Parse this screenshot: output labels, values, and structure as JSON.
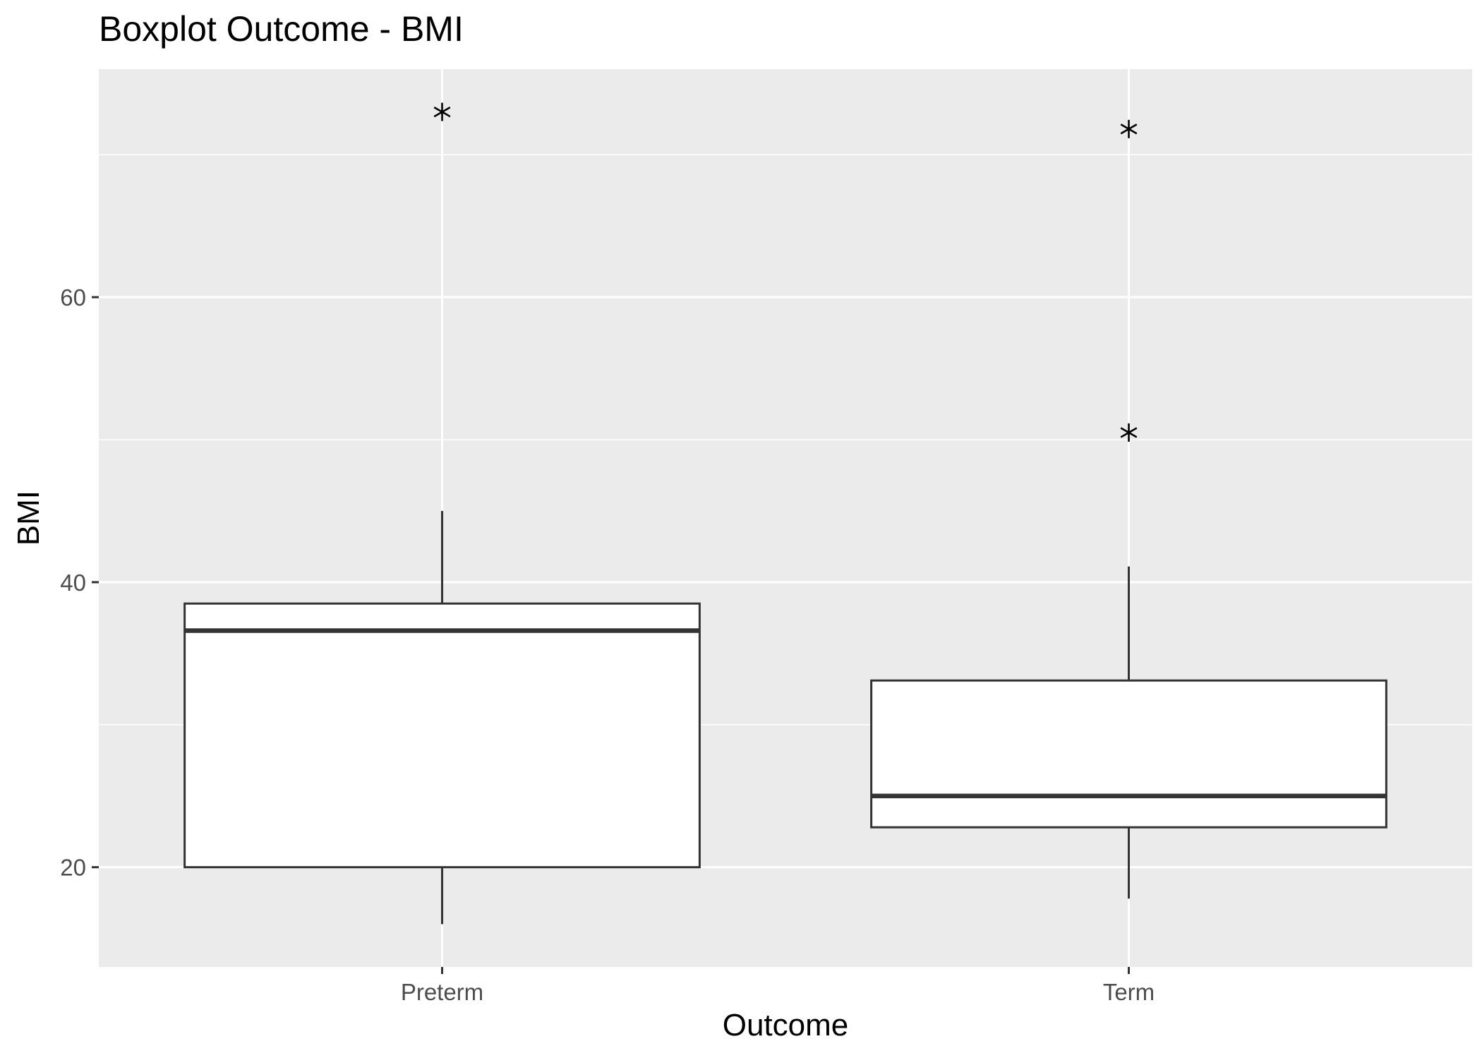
{
  "chart_data": {
    "type": "box",
    "title": "Boxplot Outcome - BMI",
    "xlabel": "Outcome",
    "ylabel": "BMI",
    "categories": [
      "Preterm",
      "Term"
    ],
    "boxes": [
      {
        "category": "Preterm",
        "whisker_low": 16,
        "q1": 20,
        "median": 36.6,
        "q3": 38.5,
        "whisker_high": 45,
        "outliers": [
          73
        ]
      },
      {
        "category": "Term",
        "whisker_low": 17.8,
        "q1": 22.8,
        "median": 25,
        "q3": 33.1,
        "whisker_high": 41.1,
        "outliers": [
          50.5,
          71.8
        ]
      }
    ],
    "y_ticks": [
      20,
      40,
      60
    ],
    "ylim": [
      13,
      76
    ],
    "grid": true,
    "outlier_marker": "asterisk",
    "colors": {
      "panel_bg": "#ebebeb",
      "grid": "#ffffff",
      "box_fill": "#ffffff",
      "box_stroke": "#333333",
      "tick_label": "#4d4d4d",
      "outlier": "#000000"
    }
  }
}
